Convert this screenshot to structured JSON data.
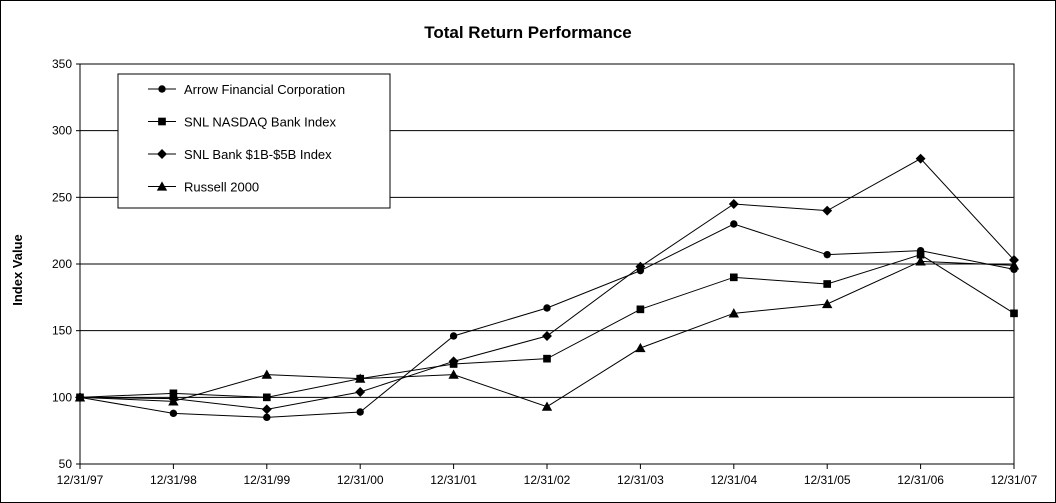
{
  "chart_data": {
    "type": "line",
    "title": "Total Return Performance",
    "xlabel": "",
    "ylabel": "Index Value",
    "ylim": [
      50,
      350
    ],
    "yticks": [
      50,
      100,
      150,
      200,
      250,
      300,
      350
    ],
    "grid": "horizontal",
    "legend_position": "top-left",
    "categories": [
      "12/31/97",
      "12/31/98",
      "12/31/99",
      "12/31/00",
      "12/31/01",
      "12/31/02",
      "12/31/03",
      "12/31/04",
      "12/31/05",
      "12/31/06",
      "12/31/07"
    ],
    "series": [
      {
        "name": "Arrow Financial Corporation",
        "marker": "circle",
        "values": [
          100,
          88,
          85,
          89,
          146,
          167,
          195,
          230,
          207,
          210,
          196
        ]
      },
      {
        "name": "SNL NASDAQ Bank Index",
        "marker": "square",
        "values": [
          100,
          103,
          100,
          114,
          125,
          129,
          166,
          190,
          185,
          207,
          163
        ]
      },
      {
        "name": "SNL Bank $1B-$5B Index",
        "marker": "diamond",
        "values": [
          100,
          99,
          91,
          104,
          127,
          146,
          198,
          245,
          240,
          279,
          203
        ]
      },
      {
        "name": "Russell 2000",
        "marker": "triangle",
        "values": [
          100,
          97,
          117,
          114,
          117,
          93,
          137,
          163,
          170,
          202,
          199
        ]
      }
    ]
  }
}
